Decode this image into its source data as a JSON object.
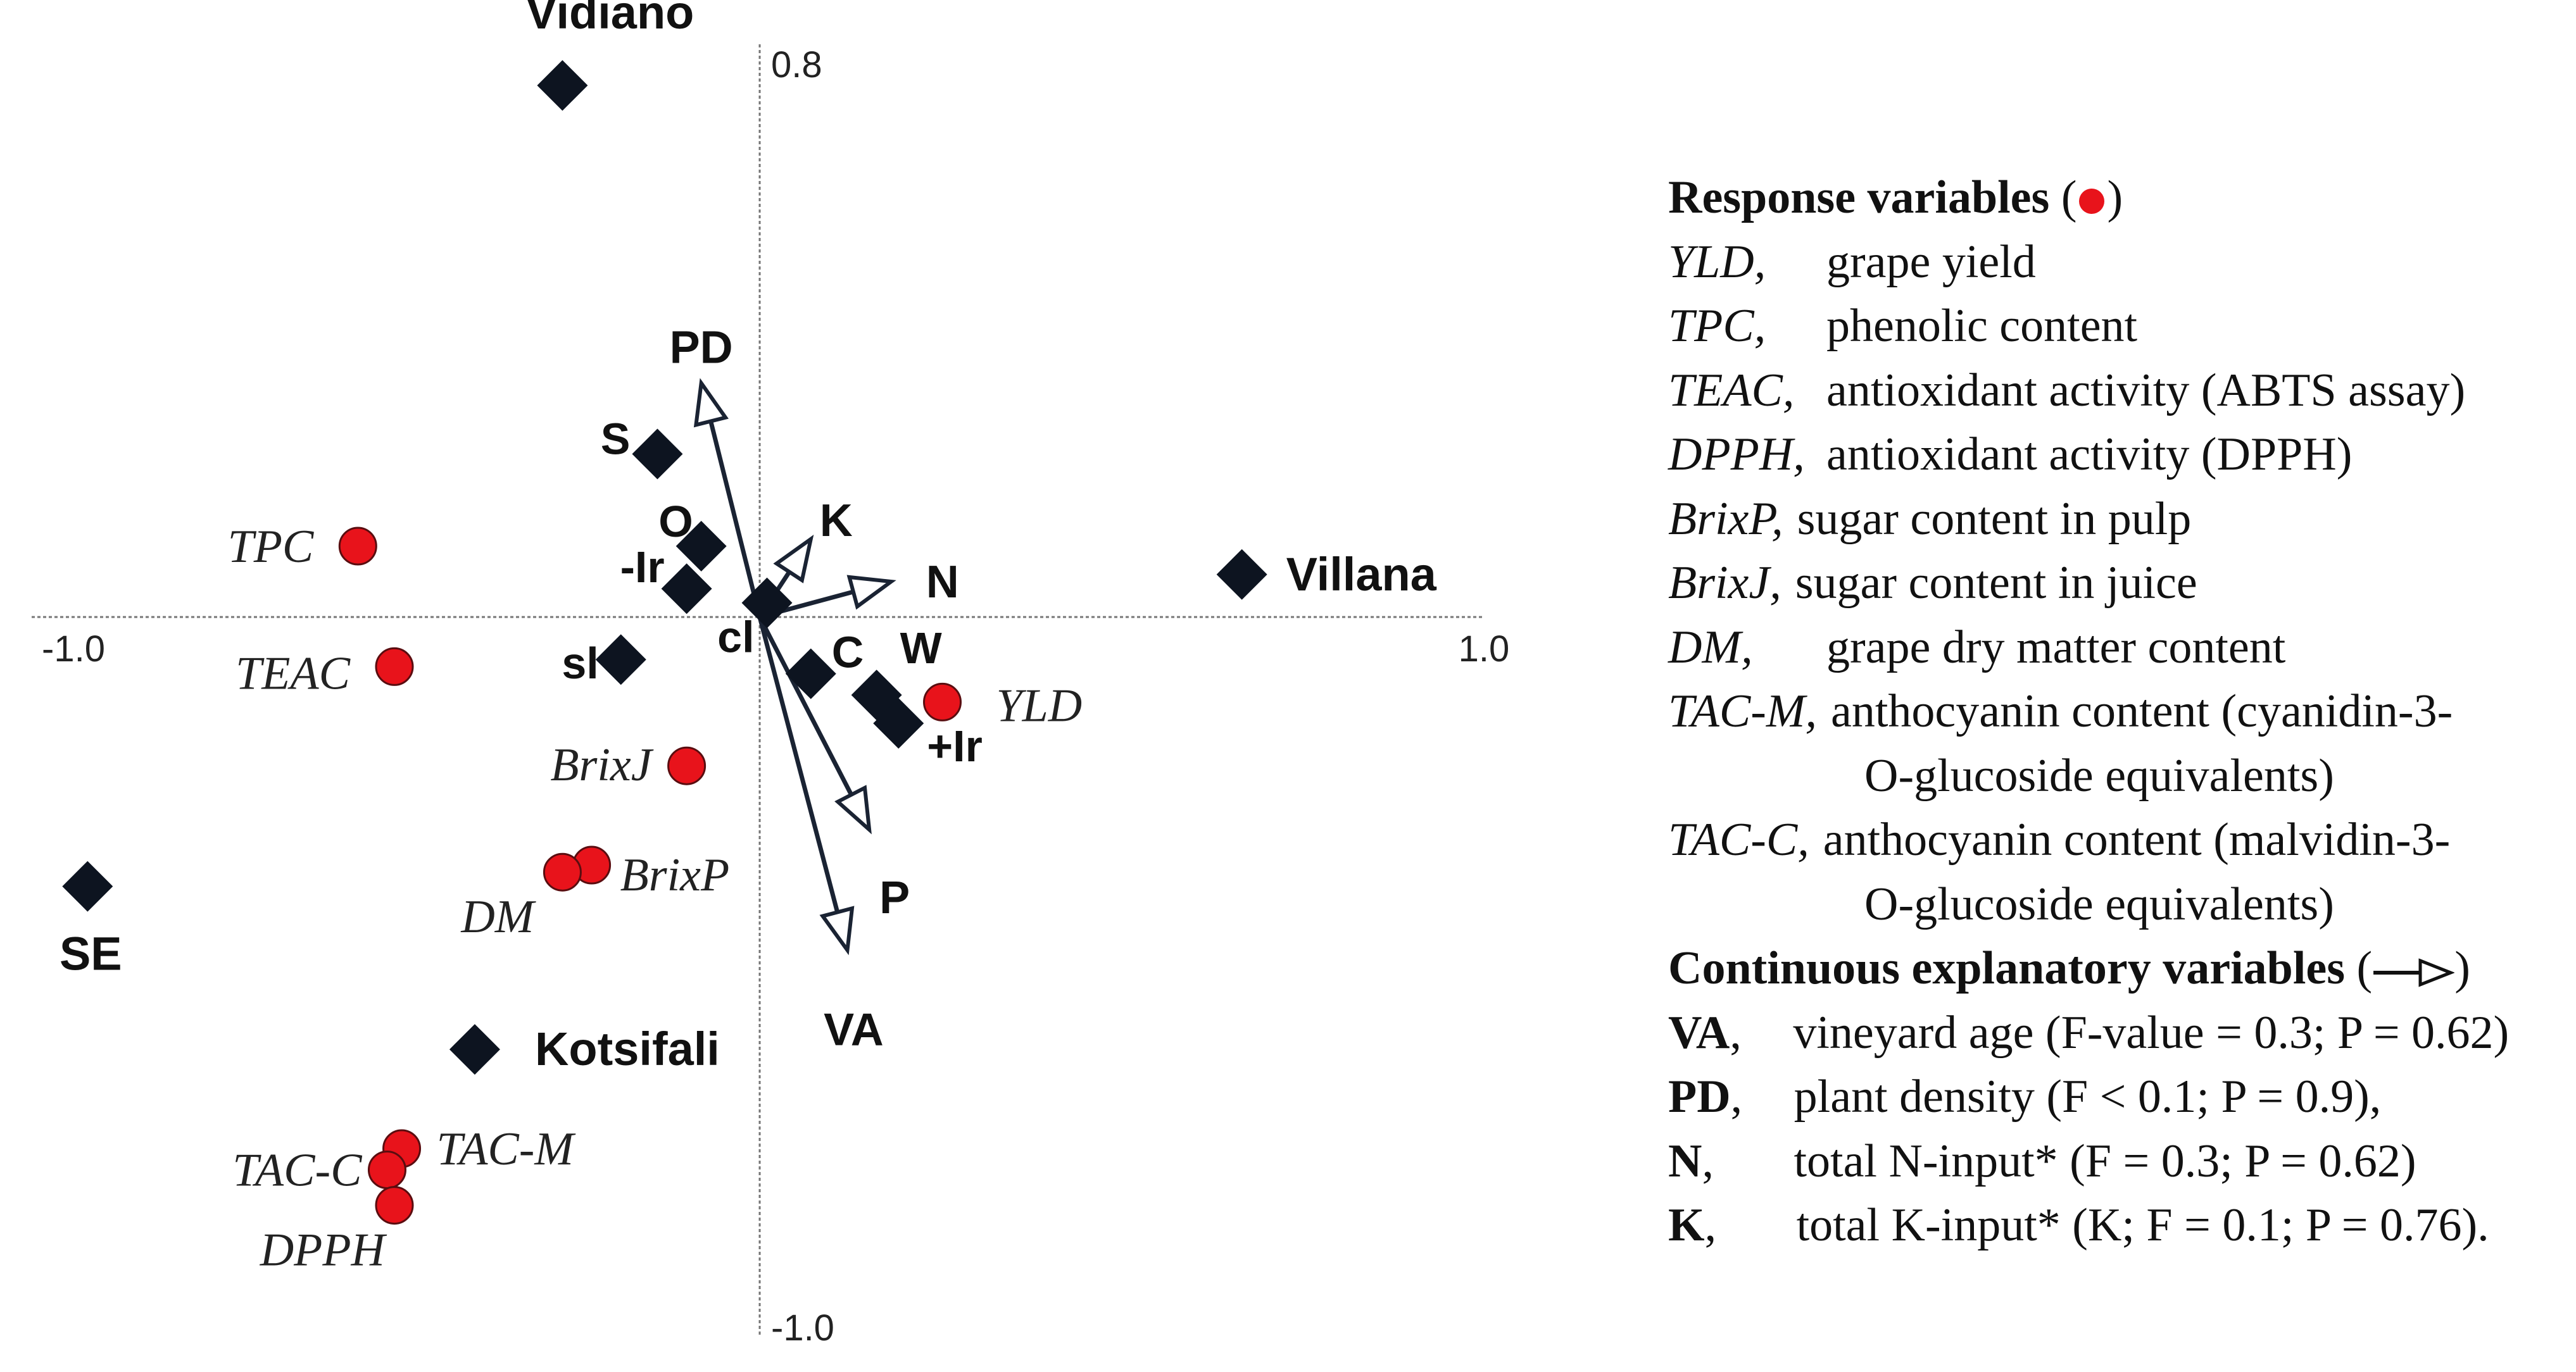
{
  "chart_data": {
    "type": "scatter",
    "title": "",
    "xlabel": "",
    "ylabel": "",
    "xlim": [
      -1.0,
      1.0
    ],
    "ylim": [
      -1.0,
      0.8
    ],
    "x_tick_labels": {
      "min": "-1.0",
      "max": "1.0"
    },
    "y_tick_labels": {
      "min": "-1.0",
      "max": "0.8"
    },
    "grid": false,
    "response_variables": [
      {
        "label": "TPC",
        "x": -0.55,
        "y": 0.1
      },
      {
        "label": "TEAC",
        "x": -0.5,
        "y": -0.07
      },
      {
        "label": "YLD",
        "x": 0.25,
        "y": -0.12
      },
      {
        "label": "BrixJ",
        "x": -0.1,
        "y": -0.21
      },
      {
        "label": "BrixP",
        "x": -0.23,
        "y": -0.35
      },
      {
        "label": "DM",
        "x": -0.27,
        "y": -0.36
      },
      {
        "label": "TAC-M",
        "x": -0.49,
        "y": -0.75
      },
      {
        "label": "TAC-C",
        "x": -0.51,
        "y": -0.78
      },
      {
        "label": "DPPH",
        "x": -0.5,
        "y": -0.83
      }
    ],
    "nominal_factors": [
      {
        "label": "Vidiano",
        "x": -0.27,
        "y": 0.75
      },
      {
        "label": "Villana",
        "x": 0.66,
        "y": 0.06
      },
      {
        "label": "SE",
        "x": -0.92,
        "y": -0.38
      },
      {
        "label": "Kotsifali",
        "x": -0.39,
        "y": -0.61
      },
      {
        "label": "S",
        "x": -0.14,
        "y": 0.23
      },
      {
        "label": "O",
        "x": -0.08,
        "y": 0.1
      },
      {
        "label": "-Ir",
        "x": -0.1,
        "y": 0.04
      },
      {
        "label": "sl",
        "x": -0.19,
        "y": -0.06
      },
      {
        "label": "cl",
        "x": 0.01,
        "y": 0.02
      },
      {
        "label": "C",
        "x": 0.07,
        "y": -0.08
      },
      {
        "label": "W",
        "x": 0.16,
        "y": -0.11
      },
      {
        "label": "+Ir",
        "x": 0.19,
        "y": -0.15
      }
    ],
    "explanatory_vectors": [
      {
        "label": "PD",
        "x": -0.08,
        "y": 0.33
      },
      {
        "label": "K",
        "x": 0.07,
        "y": 0.11
      },
      {
        "label": "N",
        "x": 0.18,
        "y": 0.05
      },
      {
        "label": "P",
        "x": 0.15,
        "y": -0.3
      },
      {
        "label": "VA",
        "x": 0.12,
        "y": -0.47
      }
    ],
    "colors": {
      "response": "#e8131b",
      "factor": "#0d1420",
      "vector": "#1a2333",
      "axis": "#777777"
    }
  },
  "legend": {
    "response_title": "Response variables",
    "response_items": [
      {
        "abbr": "YLD,",
        "desc": "grape yield"
      },
      {
        "abbr": "TPC,",
        "desc": "phenolic content"
      },
      {
        "abbr": "TEAC,",
        "desc": "antioxidant activity (ABTS assay)"
      },
      {
        "abbr": "DPPH,",
        "desc": "antioxidant activity (DPPH)"
      },
      {
        "abbr": "BrixP,",
        "desc": "sugar content in pulp"
      },
      {
        "abbr": "BrixJ,",
        "desc": "sugar content in juice"
      },
      {
        "abbr": "DM,",
        "desc": "grape dry matter content"
      },
      {
        "abbr": "TAC-M,",
        "desc": "anthocyanin content (cyanidin-3-",
        "cont": "O-glucoside equivalents)"
      },
      {
        "abbr": "TAC-C,",
        "desc": "anthocyanin content (malvidin-3-",
        "cont": "O-glucoside equivalents)"
      }
    ],
    "continuous_title": "Continuous explanatory variables",
    "continuous_items": [
      {
        "abbr": "VA",
        "sep": ",",
        "desc": "vineyard age (F-value = 0.3; P = 0.62)"
      },
      {
        "abbr": "PD",
        "sep": ",",
        "desc": "plant density (F < 0.1; P = 0.9),"
      },
      {
        "abbr": "N",
        "sep": ",",
        "desc": "total N-input* (F = 0.3; P = 0.62)"
      },
      {
        "abbr": "K",
        "sep": ",",
        "desc": "total K-input* (K; F = 0.1; P = 0.76)."
      }
    ]
  }
}
